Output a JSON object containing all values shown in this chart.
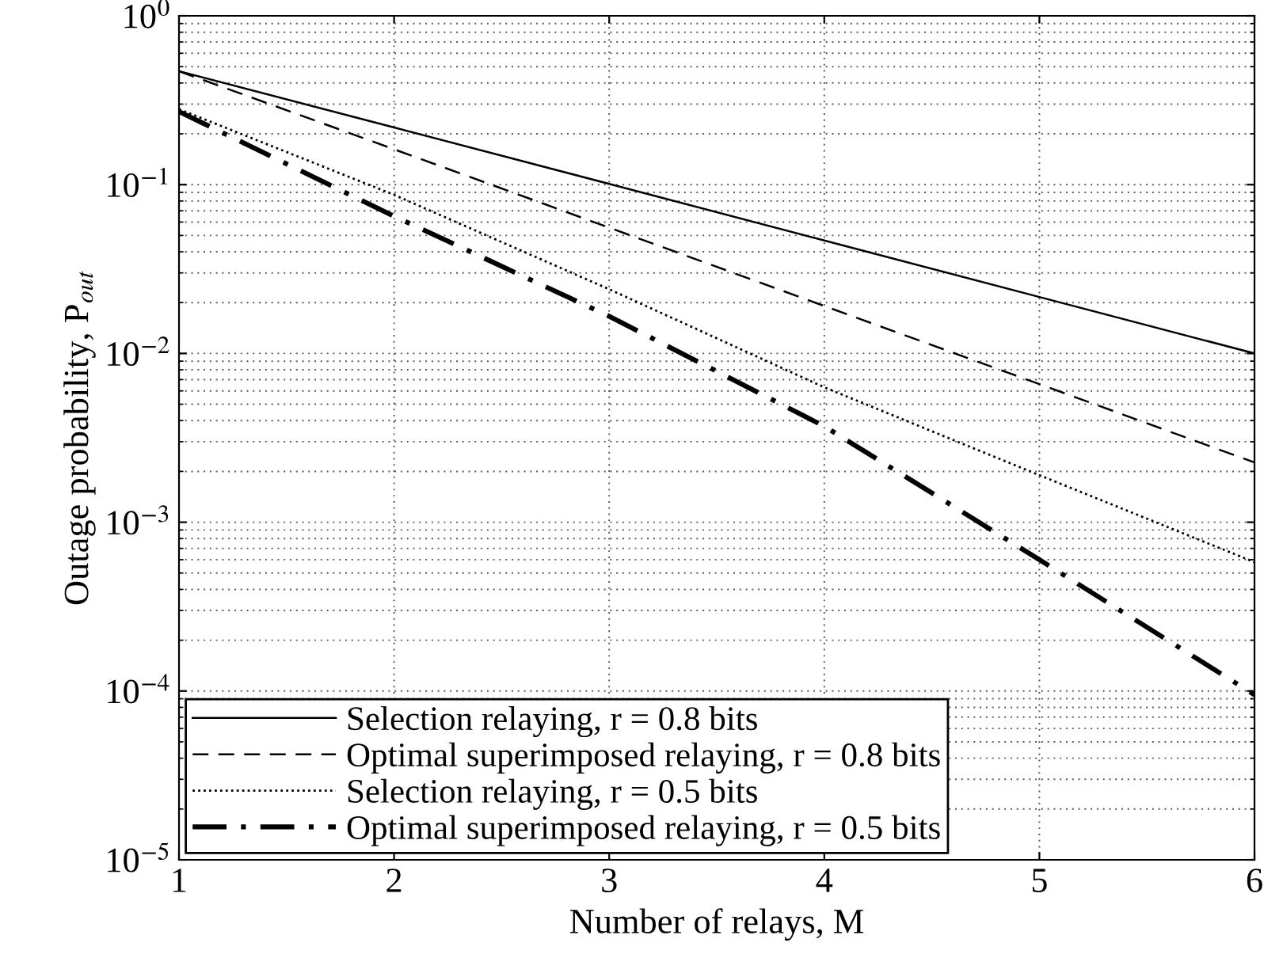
{
  "chart_data": {
    "type": "line",
    "xlabel": "Number of relays, M",
    "ylabel": "Outage probability, P$_{out}$",
    "x": [
      1,
      2,
      3,
      4,
      5,
      6
    ],
    "series": [
      {
        "name": "Selection relaying, r = 0.8 bits",
        "color": "#000000",
        "line_style": "solid",
        "values": [
          0.47,
          0.218,
          0.101,
          0.0467,
          0.0216,
          0.01
        ]
      },
      {
        "name": "Optimal superimposed relaying, r = 0.8 bits",
        "color": "#000000",
        "line_style": "dashed",
        "values": [
          0.47,
          0.162,
          0.0556,
          0.0191,
          0.00658,
          0.00226
        ]
      },
      {
        "name": "Selection relaying, r = 0.5 bits",
        "color": "#000000",
        "line_style": "dotted",
        "values": [
          0.28,
          0.087,
          0.024,
          0.0063,
          0.0019,
          0.00058
        ]
      },
      {
        "name": "Optimal superimposed relaying, r = 0.5 bits",
        "color": "#000000",
        "line_style": "dashdot",
        "values": [
          0.271,
          0.065,
          0.0166,
          0.0037,
          0.0006,
          9.5e-05
        ]
      }
    ],
    "log": "y",
    "xlim": [
      1,
      6
    ],
    "xticks": [
      1,
      2,
      3,
      4,
      5,
      6
    ],
    "ylim": [
      1e-05,
      1
    ],
    "yticks": [
      {
        "value": 1e-05,
        "label": "10$^{−5}$"
      },
      {
        "value": 0.0001,
        "label": "10$^{−4}$"
      },
      {
        "value": 0.001,
        "label": "10$^{−3}$"
      },
      {
        "value": 0.01,
        "label": "10$^{−2}$"
      },
      {
        "value": 0.1,
        "label": "10$^{−1}$"
      },
      {
        "value": 1,
        "label": "10$^{0}$"
      }
    ],
    "grid": true,
    "legend": "bottom left",
    "marker": "none"
  }
}
